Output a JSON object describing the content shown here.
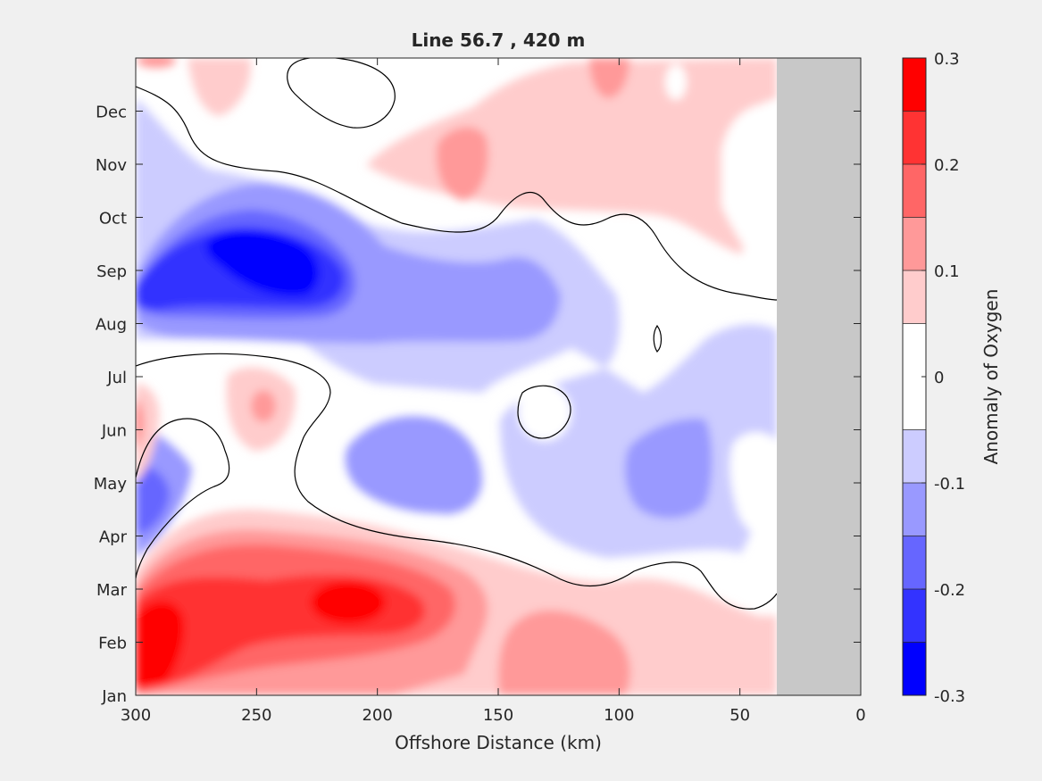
{
  "chart_data": {
    "type": "heatmap",
    "subtype": "filled-contour",
    "title": "Line 56.7 , 420 m",
    "xlabel": "Offshore Distance (km)",
    "ylabel": "",
    "x_reversed": true,
    "xlim": [
      300,
      0
    ],
    "xticks": [
      300,
      250,
      200,
      150,
      100,
      50,
      0
    ],
    "y_categories": [
      "Jan",
      "Feb",
      "Mar",
      "Apr",
      "May",
      "Jun",
      "Jul",
      "Aug",
      "Sep",
      "Oct",
      "Nov",
      "Dec"
    ],
    "data_extent_km": [
      300,
      35
    ],
    "no_data_region_km": [
      35,
      0
    ],
    "no_data_color": "#c8c8c8",
    "colorbar": {
      "label": "Anomaly of Oxygen",
      "range": [
        -0.3,
        0.3
      ],
      "ticks": [
        "-0.3",
        "-0.2",
        "-0.1",
        "0",
        "0.1",
        "0.2",
        "0.3"
      ],
      "levels": [
        -0.3,
        -0.25,
        -0.2,
        -0.15,
        -0.1,
        -0.05,
        0.05,
        0.1,
        0.15,
        0.2,
        0.25,
        0.3
      ],
      "colors": [
        "#0000ff",
        "#3333ff",
        "#6666ff",
        "#9999ff",
        "#ccccff",
        "#ffffff",
        "#ffcccc",
        "#ff9999",
        "#ff6666",
        "#ff3333",
        "#ff0000"
      ]
    },
    "features": [
      {
        "kind": "maximum",
        "month": "Feb",
        "offshore_km": 290,
        "anomaly": 0.3
      },
      {
        "kind": "maximum",
        "month": "Mar",
        "offshore_km": 210,
        "anomaly": 0.3
      },
      {
        "kind": "minimum",
        "month": "Sep",
        "offshore_km": 245,
        "anomaly": -0.3
      },
      {
        "kind": "minimum",
        "month": "Jun",
        "offshore_km": 170,
        "anomaly": -0.15
      },
      {
        "kind": "minimum",
        "month": "May",
        "offshore_km": 60,
        "anomaly": -0.15
      },
      {
        "kind": "maximum",
        "month": "Nov",
        "offshore_km": 165,
        "anomaly": 0.15
      }
    ]
  }
}
